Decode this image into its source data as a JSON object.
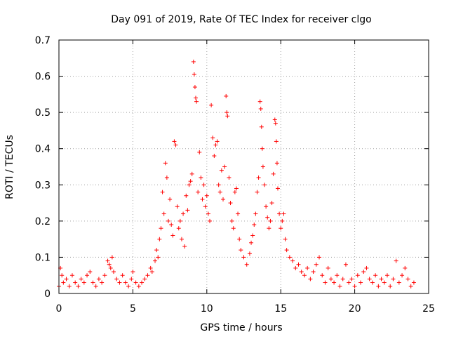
{
  "chart_data": {
    "type": "scatter",
    "title": "Day 091 of 2019, Rate Of TEC Index for receiver clgo",
    "xlabel": "GPS time / hours",
    "ylabel": "ROTI / TECUs",
    "xlim": [
      0,
      25
    ],
    "ylim": [
      0,
      0.7
    ],
    "xticks": [
      "0",
      "5",
      "10",
      "15",
      "20",
      "25"
    ],
    "yticks": [
      "0",
      "0.1",
      "0.2",
      "0.3",
      "0.4",
      "0.5",
      "0.6",
      "0.7"
    ],
    "grid": true,
    "marker": "plus",
    "series": [
      {
        "name": "ROTI",
        "color": "#ff0000",
        "points": [
          [
            0.0,
            0.02
          ],
          [
            0.1,
            0.07
          ],
          [
            0.2,
            0.05
          ],
          [
            0.3,
            0.03
          ],
          [
            0.5,
            0.04
          ],
          [
            0.7,
            0.02
          ],
          [
            0.9,
            0.05
          ],
          [
            1.1,
            0.03
          ],
          [
            1.3,
            0.02
          ],
          [
            1.5,
            0.04
          ],
          [
            1.7,
            0.03
          ],
          [
            1.9,
            0.05
          ],
          [
            2.1,
            0.06
          ],
          [
            2.3,
            0.03
          ],
          [
            2.5,
            0.02
          ],
          [
            2.7,
            0.04
          ],
          [
            2.9,
            0.03
          ],
          [
            3.1,
            0.05
          ],
          [
            3.3,
            0.09
          ],
          [
            3.4,
            0.08
          ],
          [
            3.5,
            0.07
          ],
          [
            3.6,
            0.1
          ],
          [
            3.7,
            0.06
          ],
          [
            3.9,
            0.04
          ],
          [
            4.1,
            0.03
          ],
          [
            4.3,
            0.05
          ],
          [
            4.5,
            0.03
          ],
          [
            4.7,
            0.02
          ],
          [
            4.9,
            0.04
          ],
          [
            5.0,
            0.06
          ],
          [
            5.2,
            0.03
          ],
          [
            5.4,
            0.02
          ],
          [
            5.6,
            0.03
          ],
          [
            5.8,
            0.04
          ],
          [
            6.0,
            0.05
          ],
          [
            6.2,
            0.07
          ],
          [
            6.3,
            0.06
          ],
          [
            6.5,
            0.09
          ],
          [
            6.6,
            0.12
          ],
          [
            6.7,
            0.1
          ],
          [
            6.8,
            0.15
          ],
          [
            6.9,
            0.18
          ],
          [
            7.0,
            0.28
          ],
          [
            7.1,
            0.22
          ],
          [
            7.2,
            0.36
          ],
          [
            7.3,
            0.32
          ],
          [
            7.4,
            0.2
          ],
          [
            7.5,
            0.26
          ],
          [
            7.6,
            0.19
          ],
          [
            7.7,
            0.16
          ],
          [
            7.8,
            0.42
          ],
          [
            7.9,
            0.41
          ],
          [
            8.0,
            0.24
          ],
          [
            8.1,
            0.18
          ],
          [
            8.2,
            0.2
          ],
          [
            8.3,
            0.15
          ],
          [
            8.4,
            0.22
          ],
          [
            8.5,
            0.13
          ],
          [
            8.6,
            0.27
          ],
          [
            8.7,
            0.23
          ],
          [
            8.8,
            0.3
          ],
          [
            8.9,
            0.31
          ],
          [
            9.0,
            0.33
          ],
          [
            9.1,
            0.64
          ],
          [
            9.15,
            0.605
          ],
          [
            9.2,
            0.57
          ],
          [
            9.25,
            0.54
          ],
          [
            9.3,
            0.53
          ],
          [
            9.4,
            0.28
          ],
          [
            9.5,
            0.39
          ],
          [
            9.6,
            0.32
          ],
          [
            9.7,
            0.26
          ],
          [
            9.8,
            0.3
          ],
          [
            9.9,
            0.24
          ],
          [
            10.0,
            0.27
          ],
          [
            10.1,
            0.22
          ],
          [
            10.2,
            0.2
          ],
          [
            10.3,
            0.52
          ],
          [
            10.4,
            0.43
          ],
          [
            10.5,
            0.38
          ],
          [
            10.6,
            0.41
          ],
          [
            10.7,
            0.42
          ],
          [
            10.8,
            0.3
          ],
          [
            10.9,
            0.28
          ],
          [
            11.0,
            0.34
          ],
          [
            11.1,
            0.26
          ],
          [
            11.2,
            0.35
          ],
          [
            11.3,
            0.545
          ],
          [
            11.35,
            0.5
          ],
          [
            11.4,
            0.49
          ],
          [
            11.5,
            0.32
          ],
          [
            11.6,
            0.25
          ],
          [
            11.7,
            0.2
          ],
          [
            11.8,
            0.18
          ],
          [
            11.9,
            0.28
          ],
          [
            12.0,
            0.29
          ],
          [
            12.1,
            0.22
          ],
          [
            12.2,
            0.15
          ],
          [
            12.3,
            0.12
          ],
          [
            12.5,
            0.1
          ],
          [
            12.7,
            0.08
          ],
          [
            12.9,
            0.11
          ],
          [
            13.0,
            0.14
          ],
          [
            13.1,
            0.16
          ],
          [
            13.2,
            0.19
          ],
          [
            13.3,
            0.22
          ],
          [
            13.4,
            0.28
          ],
          [
            13.5,
            0.32
          ],
          [
            13.6,
            0.53
          ],
          [
            13.65,
            0.51
          ],
          [
            13.7,
            0.46
          ],
          [
            13.75,
            0.4
          ],
          [
            13.8,
            0.35
          ],
          [
            13.9,
            0.3
          ],
          [
            14.0,
            0.24
          ],
          [
            14.1,
            0.21
          ],
          [
            14.2,
            0.18
          ],
          [
            14.3,
            0.2
          ],
          [
            14.4,
            0.25
          ],
          [
            14.5,
            0.33
          ],
          [
            14.6,
            0.48
          ],
          [
            14.65,
            0.47
          ],
          [
            14.7,
            0.42
          ],
          [
            14.75,
            0.36
          ],
          [
            14.8,
            0.29
          ],
          [
            14.9,
            0.22
          ],
          [
            15.0,
            0.18
          ],
          [
            15.1,
            0.2
          ],
          [
            15.2,
            0.22
          ],
          [
            15.3,
            0.15
          ],
          [
            15.4,
            0.12
          ],
          [
            15.6,
            0.1
          ],
          [
            15.8,
            0.09
          ],
          [
            16.0,
            0.07
          ],
          [
            16.2,
            0.08
          ],
          [
            16.4,
            0.06
          ],
          [
            16.6,
            0.05
          ],
          [
            16.8,
            0.07
          ],
          [
            17.0,
            0.04
          ],
          [
            17.2,
            0.06
          ],
          [
            17.4,
            0.08
          ],
          [
            17.6,
            0.1
          ],
          [
            17.8,
            0.05
          ],
          [
            18.0,
            0.03
          ],
          [
            18.2,
            0.07
          ],
          [
            18.4,
            0.04
          ],
          [
            18.6,
            0.03
          ],
          [
            18.8,
            0.05
          ],
          [
            19.0,
            0.02
          ],
          [
            19.2,
            0.04
          ],
          [
            19.4,
            0.08
          ],
          [
            19.6,
            0.03
          ],
          [
            19.8,
            0.04
          ],
          [
            20.0,
            0.02
          ],
          [
            20.2,
            0.05
          ],
          [
            20.4,
            0.03
          ],
          [
            20.6,
            0.06
          ],
          [
            20.8,
            0.07
          ],
          [
            21.0,
            0.04
          ],
          [
            21.2,
            0.03
          ],
          [
            21.4,
            0.05
          ],
          [
            21.6,
            0.02
          ],
          [
            21.8,
            0.04
          ],
          [
            22.0,
            0.03
          ],
          [
            22.2,
            0.05
          ],
          [
            22.4,
            0.02
          ],
          [
            22.6,
            0.04
          ],
          [
            22.8,
            0.09
          ],
          [
            23.0,
            0.03
          ],
          [
            23.2,
            0.05
          ],
          [
            23.4,
            0.07
          ],
          [
            23.6,
            0.04
          ],
          [
            23.8,
            0.02
          ],
          [
            24.0,
            0.03
          ]
        ]
      }
    ]
  }
}
